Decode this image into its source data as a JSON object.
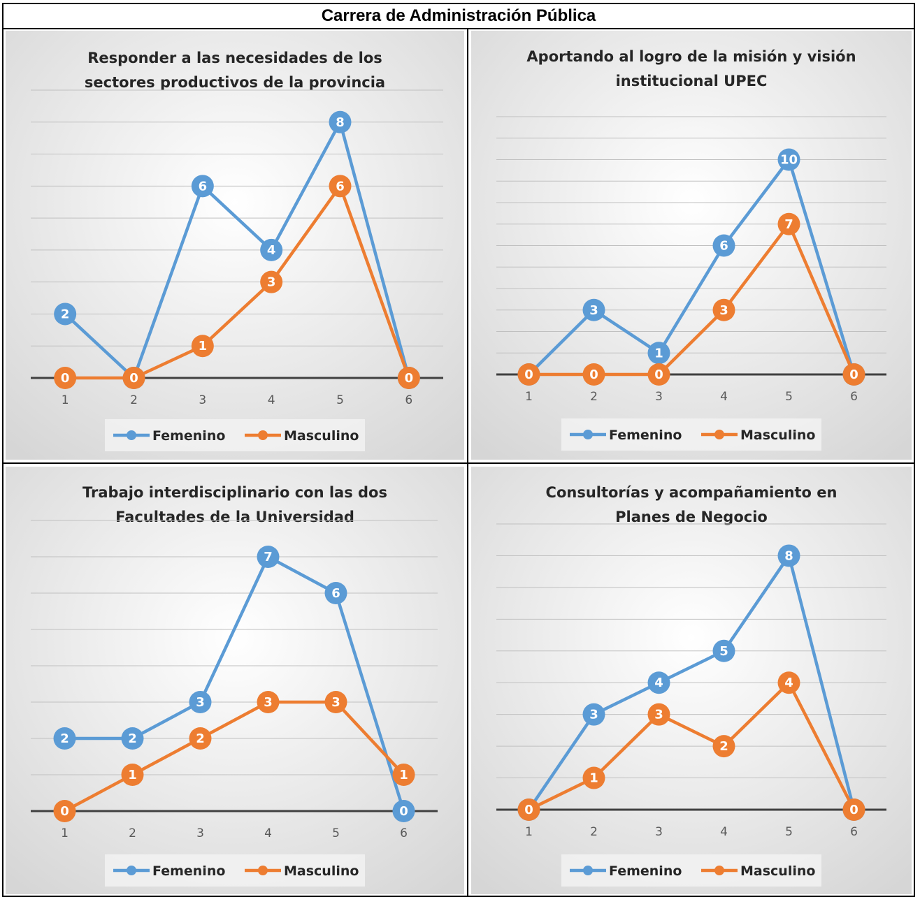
{
  "page_title": "Carrera de Administración Pública",
  "colors": {
    "femenino": "#5B9BD5",
    "masculino": "#ED7D31",
    "axis": "#404040",
    "grid": "#c0c0c0"
  },
  "chart_data": [
    {
      "type": "line",
      "title": [
        "Responder a las necesidades de los",
        "sectores productivos de la provincia"
      ],
      "categories": [
        "1",
        "2",
        "3",
        "4",
        "5",
        "6"
      ],
      "series": [
        {
          "name": "Femenino",
          "values": [
            2,
            0,
            6,
            4,
            8,
            0
          ]
        },
        {
          "name": "Masculino",
          "values": [
            0,
            0,
            1,
            3,
            6,
            0
          ]
        }
      ],
      "ylim": [
        0,
        9
      ],
      "grid": true,
      "legend": "bottom"
    },
    {
      "type": "line",
      "title": [
        "Aportando al logro de la misión y visión",
        "institucional UPEC"
      ],
      "categories": [
        "1",
        "2",
        "3",
        "4",
        "5",
        "6"
      ],
      "series": [
        {
          "name": "Femenino",
          "values": [
            0,
            3,
            1,
            6,
            10,
            0
          ]
        },
        {
          "name": "Masculino",
          "values": [
            0,
            0,
            0,
            3,
            7,
            0
          ]
        }
      ],
      "ylim": [
        0,
        12
      ],
      "grid": true,
      "legend": "bottom"
    },
    {
      "type": "line",
      "title": [
        "Trabajo interdisciplinario con las dos",
        "Facultades de la Universidad"
      ],
      "categories": [
        "1",
        "2",
        "3",
        "4",
        "5",
        "6"
      ],
      "series": [
        {
          "name": "Femenino",
          "values": [
            2,
            2,
            3,
            7,
            6,
            0
          ]
        },
        {
          "name": "Masculino",
          "values": [
            0,
            1,
            2,
            3,
            3,
            1
          ]
        }
      ],
      "ylim": [
        0,
        8
      ],
      "grid": true,
      "legend": "bottom"
    },
    {
      "type": "line",
      "title": [
        "Consultorías y acompañamiento en",
        "Planes de Negocio"
      ],
      "categories": [
        "1",
        "2",
        "3",
        "4",
        "5",
        "6"
      ],
      "series": [
        {
          "name": "Femenino",
          "values": [
            0,
            3,
            4,
            5,
            8,
            0
          ]
        },
        {
          "name": "Masculino",
          "values": [
            0,
            1,
            3,
            2,
            4,
            0
          ]
        }
      ],
      "ylim": [
        0,
        9
      ],
      "grid": true,
      "legend": "bottom"
    }
  ]
}
